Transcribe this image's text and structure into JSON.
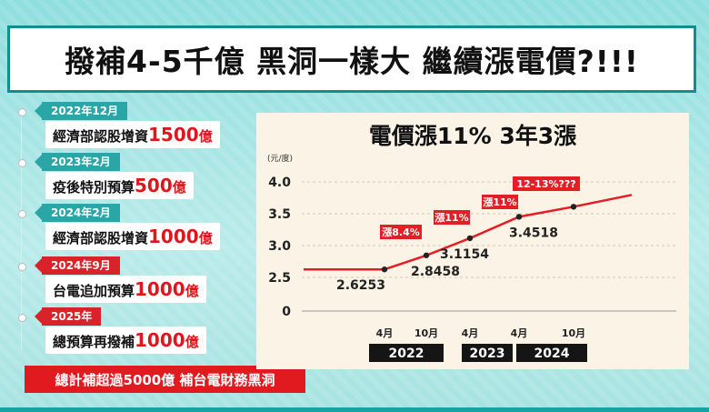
{
  "title": "撥補4-5千億 黑洞一樣大 繼續漲電價?!!!",
  "timeline": [
    {
      "date": "2022年12月",
      "text": "經濟部認股增資",
      "amount": "1500",
      "unit": "億",
      "color": "teal"
    },
    {
      "date": "2023年2月",
      "text": "疫後特別預算",
      "amount": "500",
      "unit": "億",
      "color": "teal"
    },
    {
      "date": "2024年2月",
      "text": "經濟部認股增資",
      "amount": "1000",
      "unit": "億",
      "color": "teal"
    },
    {
      "date": "2024年9月",
      "text": "台電追加預算",
      "amount": "1000",
      "unit": "億",
      "color": "red"
    },
    {
      "date": "2025年",
      "text": "總預算再撥補",
      "amount": "1000",
      "unit": "億",
      "color": "red"
    }
  ],
  "summary": "總計補超過5000億 補台電財務黑洞",
  "chart_data": {
    "type": "line",
    "title": "電價漲11% 3年3漲",
    "ylabel": "(元/度)",
    "y_ticks": [
      "4.0",
      "3.5",
      "3.0",
      "2.5",
      "0"
    ],
    "ylim": [
      0,
      4.0
    ],
    "x_ticks": [
      "4月",
      "10月",
      "4月",
      "4月",
      "10月"
    ],
    "year_labels": [
      "2022",
      "2023",
      "2024"
    ],
    "points": [
      {
        "x": "2022年4月",
        "value": 2.6253,
        "label": "2.6253"
      },
      {
        "x": "2022年10月",
        "value": 2.8458,
        "label": "2.8458"
      },
      {
        "x": "2023年4月",
        "value": 3.1154,
        "label": "3.1154"
      },
      {
        "x": "2024年4月",
        "value": 3.4518,
        "label": "3.4518"
      },
      {
        "x": "2024年10月",
        "value": 3.61,
        "label": ""
      }
    ],
    "annotations": [
      "漲8.4%",
      "漲11%",
      "漲11%",
      "12-13%???"
    ],
    "line_color": "#e31e24",
    "grid": true
  }
}
